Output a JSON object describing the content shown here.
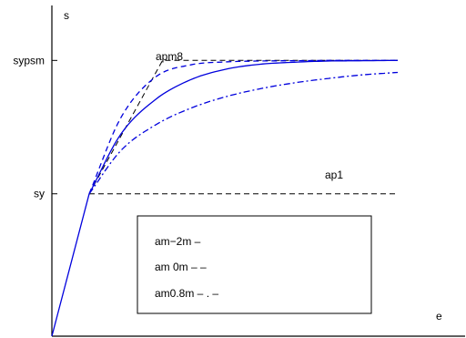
{
  "chart_data": {
    "type": "line",
    "xlabel": "e",
    "ylabel": "s",
    "xlim": [
      0,
      10
    ],
    "ylim": [
      0,
      10
    ],
    "yticks": [
      {
        "value": 4.75,
        "label": "sy"
      },
      {
        "value": 9.2,
        "label": "sypsm"
      }
    ],
    "annotations": [
      {
        "text": "apm8",
        "x": 3.0,
        "y": 10.4
      },
      {
        "text": "ap1",
        "x": 7.9,
        "y": 5.45
      }
    ],
    "legend": {
      "placement": "center-bottom",
      "entries": [
        "am−2m –",
        "am 0m – –",
        "am0.8m – . –"
      ]
    },
    "series": [
      {
        "style": "solid",
        "color": "#0000dd",
        "x": [
          0,
          1.08
        ],
        "y": [
          0,
          4.75
        ]
      },
      {
        "style": "dashed",
        "color": "#000000",
        "x": [
          1.08,
          10
        ],
        "y": [
          4.75,
          4.75
        ]
      },
      {
        "style": "dashed",
        "color": "#000000",
        "x": [
          1.08,
          3.2,
          10
        ],
        "y": [
          4.75,
          9.2,
          9.2
        ]
      },
      {
        "style": "dashed",
        "color": "#0000dd",
        "x": [
          1.08,
          2.0,
          3.0,
          4.0,
          5.0,
          6.0,
          7.0,
          8.0,
          9.0,
          10.0
        ],
        "y": [
          4.75,
          7.3,
          8.65,
          9.05,
          9.15,
          9.18,
          9.19,
          9.2,
          9.2,
          9.2
        ]
      },
      {
        "style": "solid",
        "color": "#0000dd",
        "x": [
          1.08,
          2.0,
          3.0,
          4.0,
          5.0,
          6.0,
          7.0,
          8.0,
          9.0,
          10.0
        ],
        "y": [
          4.75,
          6.75,
          7.9,
          8.55,
          8.9,
          9.07,
          9.14,
          9.18,
          9.19,
          9.2
        ]
      },
      {
        "style": "dashdot",
        "color": "#0000dd",
        "x": [
          1.08,
          2.0,
          3.0,
          4.0,
          5.0,
          6.0,
          7.0,
          8.0,
          9.0,
          10.0
        ],
        "y": [
          4.75,
          6.2,
          7.05,
          7.6,
          7.98,
          8.25,
          8.45,
          8.6,
          8.72,
          8.8
        ]
      }
    ]
  }
}
